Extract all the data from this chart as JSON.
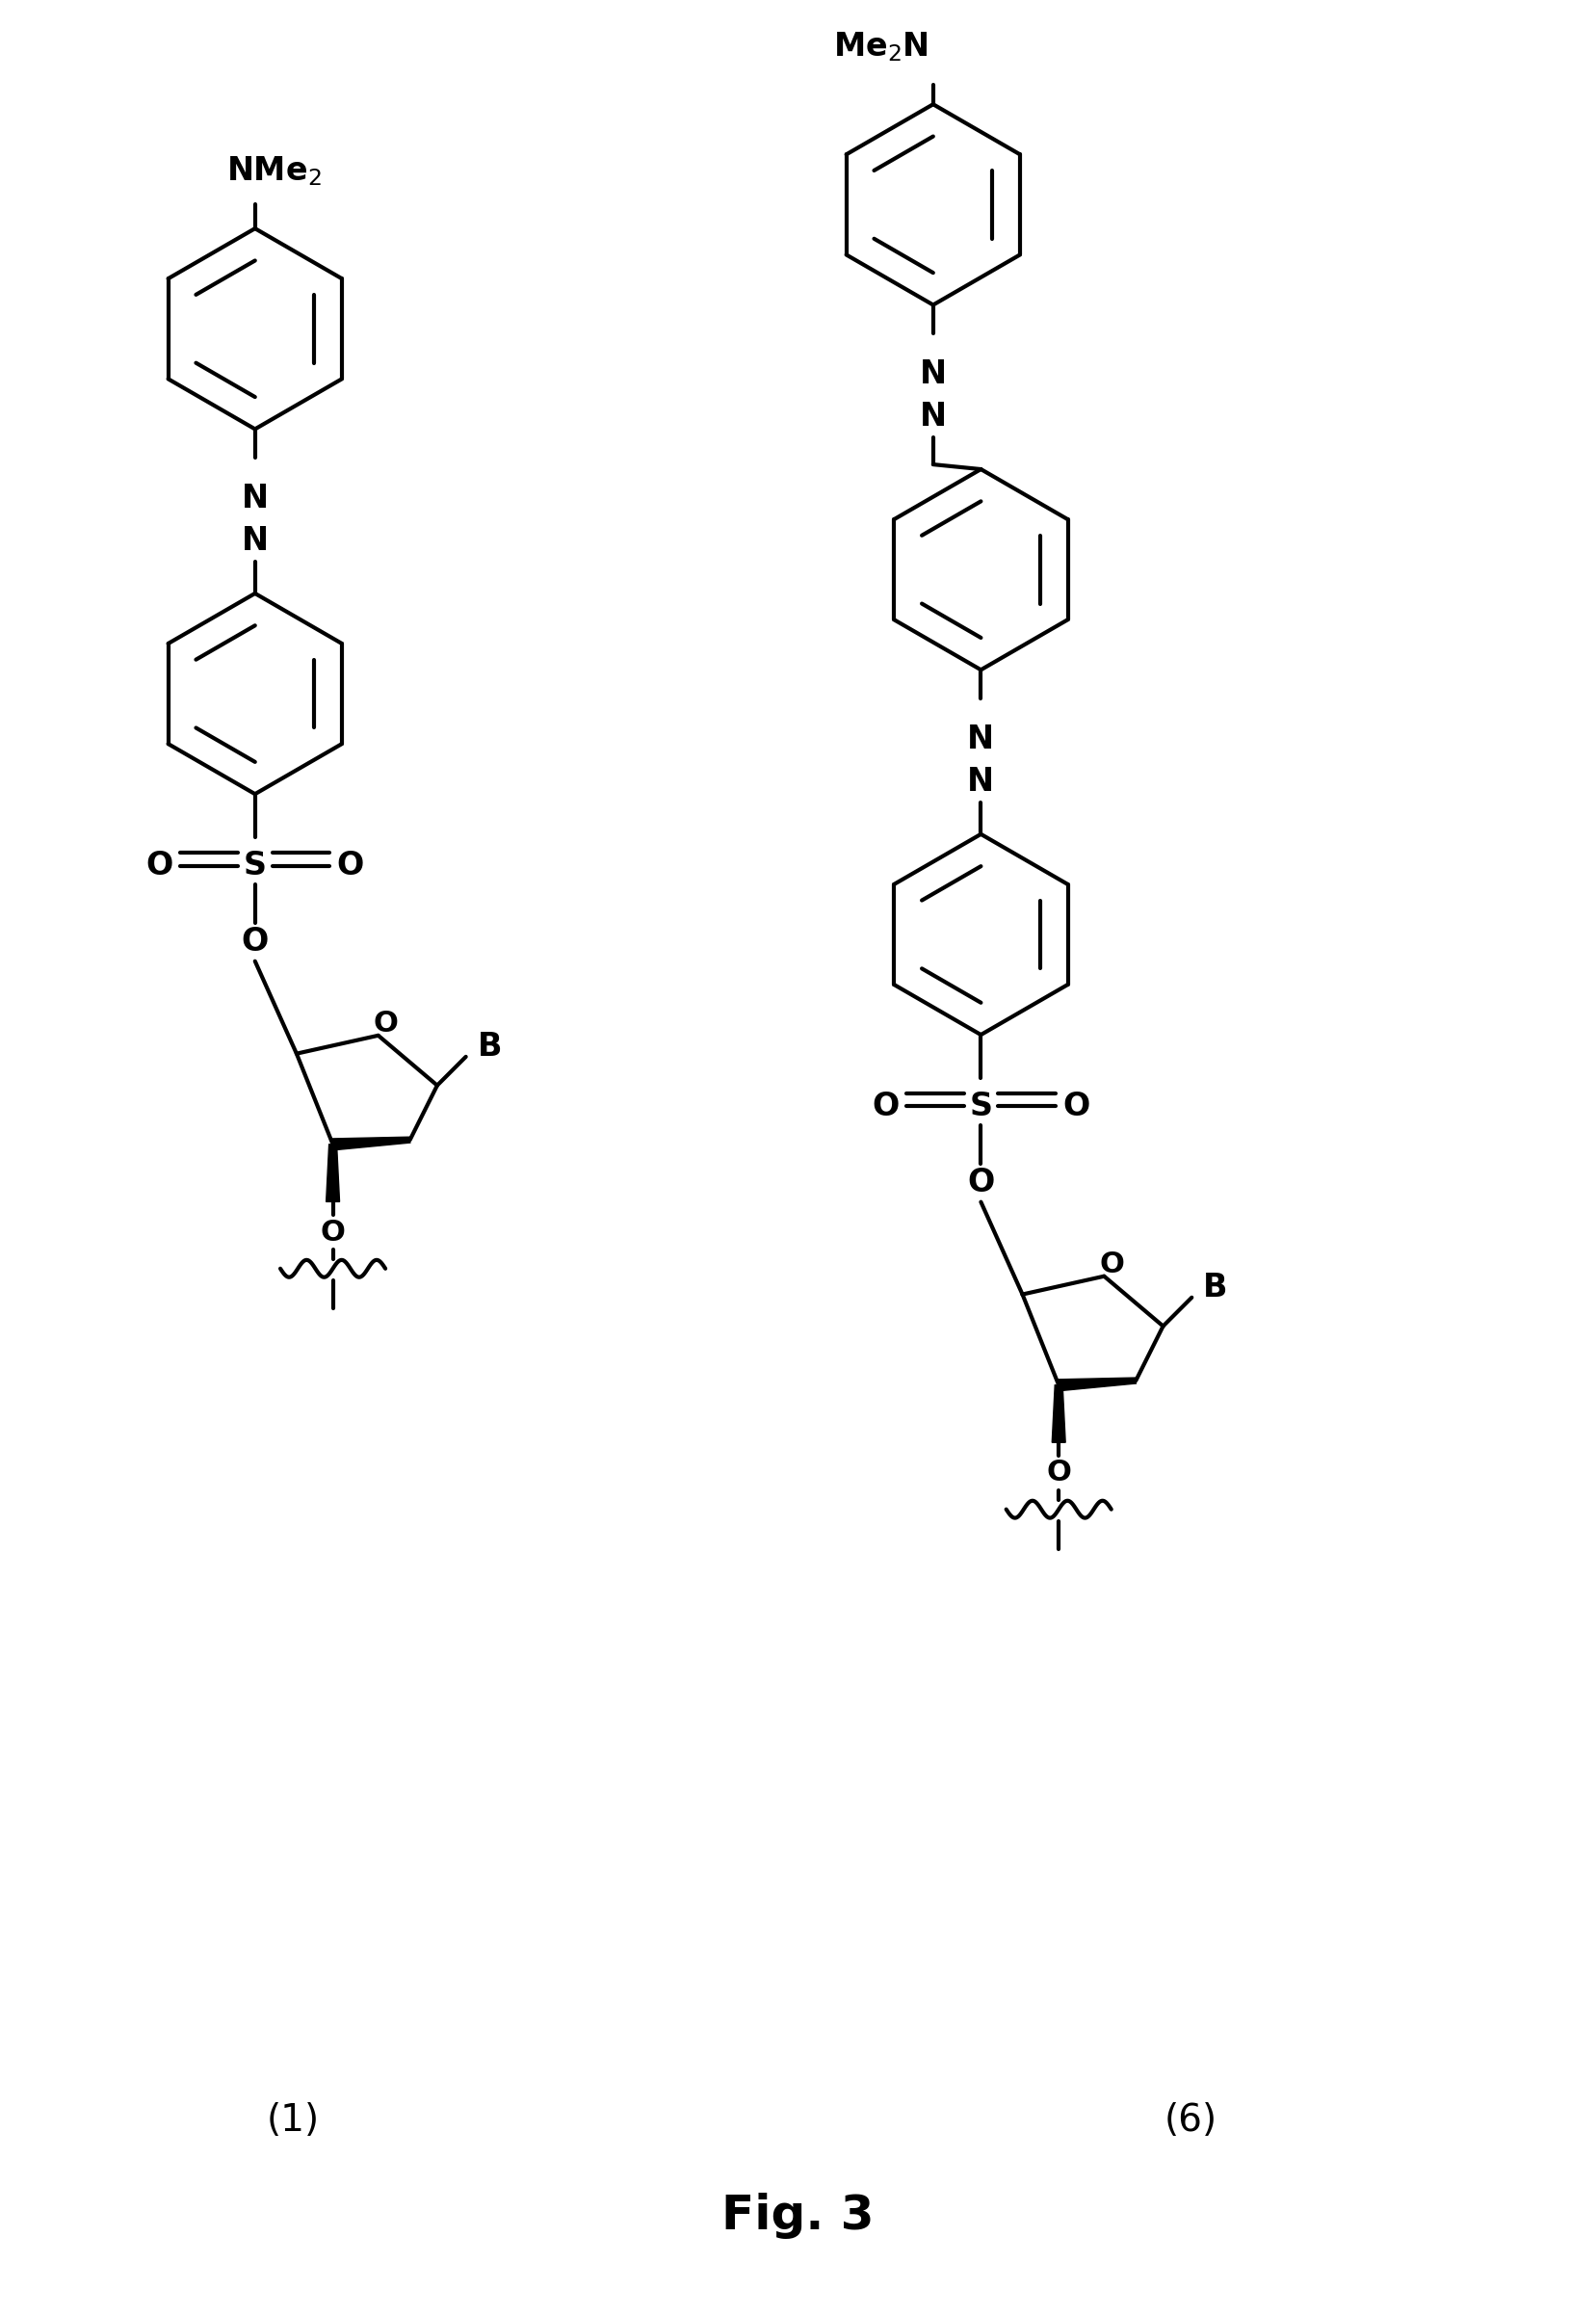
{
  "title": "Fig. 3",
  "title_fontsize": 36,
  "background_color": "#ffffff",
  "line_color": "#000000",
  "line_width": 3.0,
  "label1": "(1)",
  "label2": "(6)",
  "label_fontsize": 28,
  "text_fontsize": 24
}
